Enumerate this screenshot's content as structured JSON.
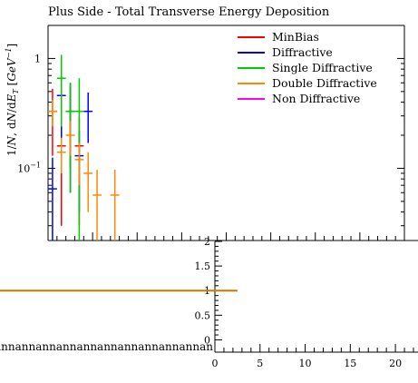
{
  "chart_data": [
    {
      "type": "scatter",
      "title": "Plus Side - Total Transverse Energy Deposition",
      "ylabel": "1/N, dN/dE_T [GeV^-1]",
      "yscale": "log",
      "ylim": [
        0.022,
        2.0
      ],
      "ytick_labels": [
        "10^-1",
        "1"
      ],
      "legend_position": "top-right",
      "series": [
        {
          "name": "MinBias",
          "color": "#ff0000",
          "x": [
            0.5,
            1.5,
            2.5,
            3.5
          ],
          "y": [
            0.33,
            0.16,
            0.33,
            0.16
          ],
          "yerr": [
            0.2,
            0.13,
            0.23,
            0.13
          ]
        },
        {
          "name": "Diffractive",
          "color": "#0000ff",
          "x": [
            0.5,
            1.5,
            2.5,
            3.5,
            4.5
          ],
          "y": [
            0.065,
            0.46,
            0.33,
            0.13,
            0.33
          ],
          "yerr": [
            0.06,
            0.33,
            0.27,
            0.09,
            0.16
          ]
        },
        {
          "name": "Single Diffractive",
          "color": "#00cc00",
          "x": [
            1.5,
            2.5,
            3.5
          ],
          "y": [
            0.66,
            0.33,
            0.33
          ],
          "yerr": [
            0.42,
            0.27,
            0.33
          ]
        },
        {
          "name": "Double Diffractive",
          "color": "#ff8800",
          "x": [
            0.5,
            1.5,
            2.5,
            3.5,
            4.5,
            5.5,
            7.5
          ],
          "y": [
            0.33,
            0.14,
            0.2,
            0.12,
            0.09,
            0.057,
            0.057
          ],
          "yerr": [
            0.09,
            0.05,
            0.07,
            0.05,
            0.05,
            0.04,
            0.04
          ]
        },
        {
          "name": "Non Diffractive",
          "color": "#ff00ff",
          "x": [],
          "y": [],
          "yerr": []
        }
      ]
    },
    {
      "type": "line",
      "xlim": [
        0,
        22
      ],
      "ylim": [
        -0.25,
        2.0
      ],
      "xtick_labels": [
        "0",
        "5",
        "10",
        "15",
        "20"
      ],
      "ytick_labels": [
        "0",
        "0.5",
        "1",
        "1.5",
        "2"
      ],
      "ratio_line": {
        "y": 1,
        "x_end": 2.5,
        "color": "#cc7700"
      },
      "nan_labels": "nannannannannannannannannannannannan"
    }
  ]
}
